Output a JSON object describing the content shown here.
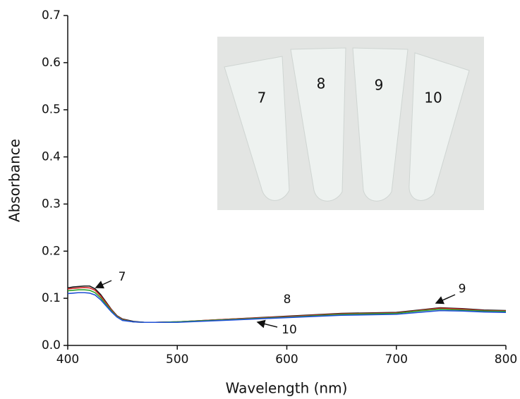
{
  "chart_data": {
    "type": "line",
    "x_label": "Wavelength (nm)",
    "y_label": "Absorbance",
    "x": [
      400,
      405,
      410,
      415,
      420,
      425,
      430,
      435,
      440,
      445,
      450,
      460,
      470,
      480,
      500,
      550,
      600,
      650,
      700,
      720,
      740,
      760,
      780,
      800
    ],
    "series": [
      {
        "color": "#1a1a1a",
        "values": [
          0.122,
          0.124,
          0.125,
          0.126,
          0.126,
          0.12,
          0.108,
          0.092,
          0.076,
          0.063,
          0.056,
          0.051,
          0.049,
          0.049,
          0.05,
          0.056,
          0.062,
          0.068,
          0.07,
          0.075,
          0.08,
          0.078,
          0.075,
          0.074
        ]
      },
      {
        "color": "#d62728",
        "values": [
          0.12,
          0.121,
          0.122,
          0.123,
          0.122,
          0.117,
          0.105,
          0.09,
          0.075,
          0.062,
          0.055,
          0.05,
          0.049,
          0.049,
          0.05,
          0.056,
          0.061,
          0.067,
          0.069,
          0.074,
          0.079,
          0.077,
          0.074,
          0.073
        ]
      },
      {
        "color": "#2ca02c",
        "values": [
          0.116,
          0.117,
          0.118,
          0.118,
          0.117,
          0.112,
          0.101,
          0.087,
          0.073,
          0.061,
          0.054,
          0.05,
          0.049,
          0.049,
          0.05,
          0.055,
          0.06,
          0.066,
          0.068,
          0.073,
          0.077,
          0.075,
          0.073,
          0.072
        ]
      },
      {
        "color": "#1f4fd6",
        "values": [
          0.11,
          0.111,
          0.112,
          0.112,
          0.111,
          0.107,
          0.097,
          0.084,
          0.071,
          0.06,
          0.053,
          0.05,
          0.049,
          0.049,
          0.049,
          0.054,
          0.059,
          0.064,
          0.066,
          0.07,
          0.074,
          0.073,
          0.071,
          0.07
        ]
      }
    ],
    "xlim": [
      400,
      800
    ],
    "xticks": [
      400,
      500,
      600,
      700,
      800
    ],
    "ylim": [
      0,
      0.7
    ],
    "yticks": [
      {
        "value": 0,
        "label": "0.0"
      },
      0.1,
      0.2,
      0.3,
      0.4,
      0.5,
      0.6,
      0.7
    ],
    "annotations": [
      "7",
      "8",
      "9",
      "10"
    ],
    "inset_labels": [
      "7",
      "8",
      "9",
      "10"
    ]
  }
}
